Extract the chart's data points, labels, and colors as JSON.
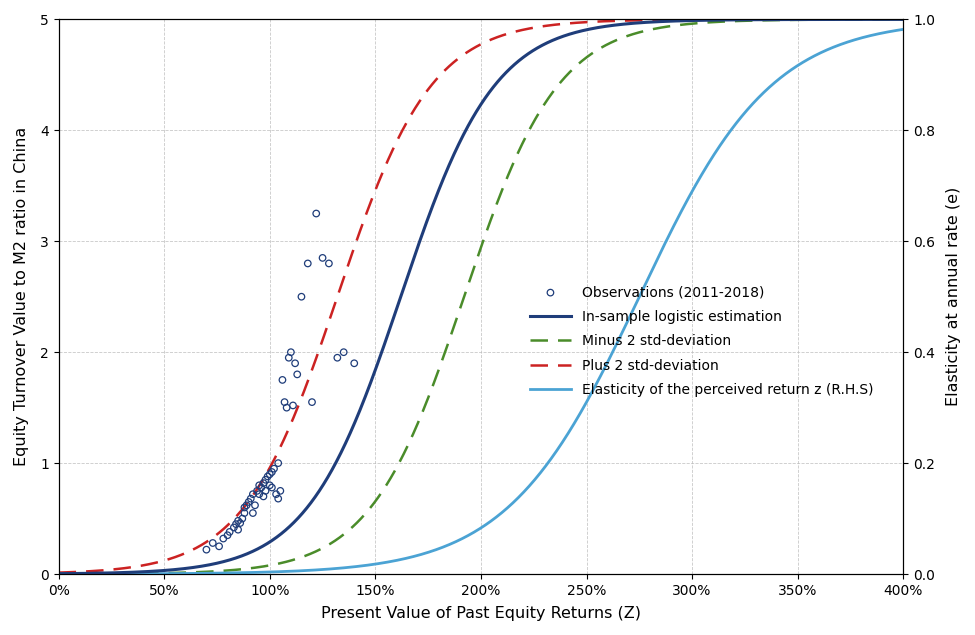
{
  "title": "",
  "xlabel": "Present Value of Past Equity Returns (Z)",
  "ylabel_left": "Equity Turnover Value to M2 ratio in China",
  "ylabel_right": "Elasticity at annual rate (e)",
  "x_min": 0.0,
  "x_max": 4.0,
  "y_left_min": 0,
  "y_left_max": 5,
  "y_right_min": 0.0,
  "y_right_max": 1.0,
  "logistic_L": 5.0,
  "logistic_k_main": 4.5,
  "logistic_x0_main": 1.62,
  "logistic_k_minus": 4.5,
  "logistic_x0_minus": 1.92,
  "logistic_k_plus": 4.5,
  "logistic_x0_plus": 1.32,
  "elasticity_L": 1.0,
  "elasticity_k": 3.2,
  "elasticity_x0": 2.75,
  "color_main": "#1F3D7A",
  "color_minus": "#4A8C2A",
  "color_plus": "#CC2222",
  "color_elasticity": "#4BA3D4",
  "color_scatter_edge": "#1F3D7A",
  "obs_x": [
    0.7,
    0.73,
    0.76,
    0.78,
    0.8,
    0.81,
    0.83,
    0.84,
    0.85,
    0.85,
    0.86,
    0.87,
    0.88,
    0.88,
    0.89,
    0.9,
    0.91,
    0.92,
    0.92,
    0.93,
    0.94,
    0.95,
    0.95,
    0.96,
    0.97,
    0.97,
    0.98,
    0.98,
    0.99,
    1.0,
    1.0,
    1.01,
    1.01,
    1.02,
    1.03,
    1.04,
    1.04,
    1.05,
    1.06,
    1.07,
    1.08,
    1.09,
    1.1,
    1.11,
    1.12,
    1.13,
    1.15,
    1.18,
    1.2,
    1.22,
    1.25,
    1.28,
    1.32,
    1.35,
    1.4
  ],
  "obs_y": [
    0.22,
    0.28,
    0.25,
    0.32,
    0.35,
    0.38,
    0.42,
    0.45,
    0.48,
    0.4,
    0.46,
    0.5,
    0.55,
    0.6,
    0.62,
    0.65,
    0.68,
    0.55,
    0.72,
    0.62,
    0.75,
    0.8,
    0.72,
    0.78,
    0.82,
    0.7,
    0.85,
    0.75,
    0.88,
    0.9,
    0.8,
    0.92,
    0.78,
    0.95,
    0.72,
    0.68,
    1.0,
    0.75,
    1.75,
    1.55,
    1.5,
    1.95,
    2.0,
    1.52,
    1.9,
    1.8,
    2.5,
    2.8,
    1.55,
    3.25,
    2.85,
    2.8,
    1.95,
    2.0,
    1.9
  ]
}
